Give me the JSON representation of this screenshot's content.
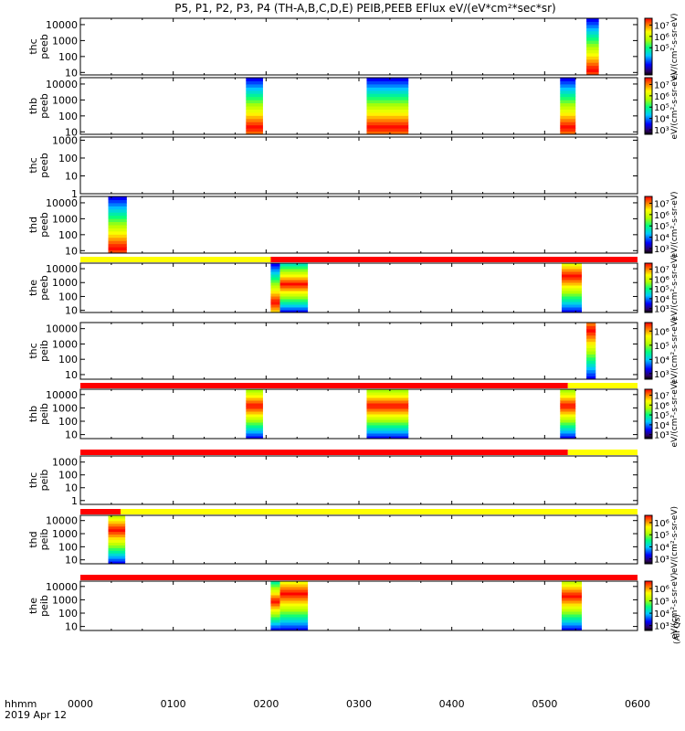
{
  "chart_data": {
    "type": "heatmap",
    "title": "P5, P1, P2, P3, P4 (TH-A,B,C,D,E) PEIB,PEEB EFlux eV/(eV*cm²*sec*sr)",
    "x_label_line1": "hhmm",
    "x_label_line2": "2019 Apr 12",
    "xlim_minutes": [
      0,
      360
    ],
    "x_ticks": [
      {
        "label": "0000",
        "minute": 0
      },
      {
        "label": "0100",
        "minute": 60
      },
      {
        "label": "0200",
        "minute": 120
      },
      {
        "label": "0300",
        "minute": 180
      },
      {
        "label": "0400",
        "minute": 240
      },
      {
        "label": "0500",
        "minute": 300
      },
      {
        "label": "0600",
        "minute": 360
      }
    ],
    "colorbar_common_label": "(All Qs)",
    "panels": [
      {
        "ylabel": [
          "thc",
          "peeb"
        ],
        "yscale": "log",
        "ylim": [
          7,
          25000
        ],
        "y_ticks": [
          "10",
          "100",
          "1000",
          "10000"
        ],
        "colorbar": {
          "min_exp": 2.6,
          "max_exp": 7.6,
          "ticks": [
            5,
            6,
            7
          ],
          "tick_labels": [
            "10⁵",
            "10⁶",
            "10⁷"
          ],
          "label": "eV/(cm²-s-sr-eV)"
        },
        "spectra": [
          {
            "start_min": 327,
            "end_min": 335,
            "low_e": 7,
            "high_e": 25000,
            "peak_e": 15,
            "fill": "full"
          }
        ],
        "status_bar": []
      },
      {
        "ylabel": [
          "thb",
          "peeb"
        ],
        "yscale": "log",
        "ylim": [
          7,
          25000
        ],
        "y_ticks": [
          "10",
          "100",
          "1000",
          "10000"
        ],
        "colorbar": {
          "min_exp": 2.6,
          "max_exp": 7.6,
          "ticks": [
            3,
            4,
            5,
            6,
            7
          ],
          "tick_labels": [
            "10³",
            "10⁴",
            "10⁵",
            "10⁶",
            "10⁷"
          ],
          "label": "eV/(cm²-s-sr-eV)"
        },
        "spectra": [
          {
            "start_min": 107,
            "end_min": 118,
            "low_e": 7,
            "high_e": 25000,
            "peak_e": 20,
            "fill": "full"
          },
          {
            "start_min": 185,
            "end_min": 212,
            "low_e": 7,
            "high_e": 25000,
            "peak_e": 20,
            "fill": "full"
          },
          {
            "start_min": 310,
            "end_min": 320,
            "low_e": 7,
            "high_e": 25000,
            "peak_e": 20,
            "fill": "full"
          }
        ],
        "status_bar": []
      },
      {
        "ylabel": [
          "thc",
          "peeb"
        ],
        "yscale": "log",
        "ylim": [
          1,
          1500
        ],
        "y_ticks": [
          "1",
          "10",
          "100",
          "1000"
        ],
        "colorbar": null,
        "spectra": [],
        "status_bar": []
      },
      {
        "ylabel": [
          "thd",
          "peeb"
        ],
        "yscale": "log",
        "ylim": [
          7,
          25000
        ],
        "y_ticks": [
          "10",
          "100",
          "1000",
          "10000"
        ],
        "colorbar": {
          "min_exp": 2.6,
          "max_exp": 7.6,
          "ticks": [
            3,
            4,
            5,
            6,
            7
          ],
          "tick_labels": [
            "10³",
            "10⁴",
            "10⁵",
            "10⁶",
            "10⁷"
          ],
          "label": "eV/(cm²-s-sr-eV)"
        },
        "spectra": [
          {
            "start_min": 18,
            "end_min": 30,
            "low_e": 7,
            "high_e": 25000,
            "peak_e": 15,
            "fill": "full"
          }
        ],
        "status_bar": []
      },
      {
        "ylabel": [
          "the",
          "peeb"
        ],
        "yscale": "log",
        "ylim": [
          7,
          25000
        ],
        "y_ticks": [
          "10",
          "100",
          "1000",
          "10000"
        ],
        "colorbar": {
          "min_exp": 2.6,
          "max_exp": 7.6,
          "ticks": [
            3,
            4,
            5,
            6,
            7
          ],
          "tick_labels": [
            "10³",
            "10⁴",
            "10⁵",
            "10⁶",
            "10⁷"
          ],
          "label": "eV/(cm²-s-sr-eV)"
        },
        "spectra": [
          {
            "start_min": 123,
            "end_min": 129,
            "low_e": 7,
            "high_e": 25000,
            "peak_e": 40,
            "fill": "full"
          },
          {
            "start_min": 129,
            "end_min": 147,
            "low_e": 7,
            "high_e": 25000,
            "peak_e": 800,
            "fill": "full"
          },
          {
            "start_min": 311,
            "end_min": 324,
            "low_e": 7,
            "high_e": 25000,
            "peak_e": 3000,
            "fill": "full"
          }
        ],
        "status_bar": [
          {
            "start_min": 0,
            "end_min": 123,
            "color": "#ffff00"
          },
          {
            "start_min": 123,
            "end_min": 360,
            "color": "#ff0000"
          }
        ]
      },
      {
        "ylabel": [
          "thc",
          "peib"
        ],
        "yscale": "log",
        "ylim": [
          5,
          25000
        ],
        "y_ticks": [
          "10",
          "100",
          "1000",
          "10000"
        ],
        "colorbar": {
          "min_exp": 2.6,
          "max_exp": 6.6,
          "ticks": [
            3,
            4,
            5,
            6
          ],
          "tick_labels": [
            "10³",
            "10⁴",
            "10⁵",
            "10⁶"
          ],
          "label": "eV/(cm²-s-sr-eV)"
        },
        "spectra": [
          {
            "start_min": 327,
            "end_min": 333,
            "low_e": 5,
            "high_e": 25000,
            "peak_e": 8000,
            "fill": "full"
          }
        ],
        "status_bar": []
      },
      {
        "ylabel": [
          "thb",
          "peib"
        ],
        "yscale": "log",
        "ylim": [
          5,
          25000
        ],
        "y_ticks": [
          "10",
          "100",
          "1000",
          "10000"
        ],
        "colorbar": {
          "min_exp": 2.6,
          "max_exp": 7.6,
          "ticks": [
            3,
            4,
            5,
            6,
            7
          ],
          "tick_labels": [
            "10³",
            "10⁴",
            "10⁵",
            "10⁶",
            "10⁷"
          ],
          "label": "eV/(cm²-s-sr-eV)"
        },
        "spectra": [
          {
            "start_min": 107,
            "end_min": 118,
            "low_e": 5,
            "high_e": 25000,
            "peak_e": 1500,
            "fill": "full"
          },
          {
            "start_min": 185,
            "end_min": 212,
            "low_e": 5,
            "high_e": 25000,
            "peak_e": 1500,
            "fill": "full"
          },
          {
            "start_min": 310,
            "end_min": 320,
            "low_e": 5,
            "high_e": 25000,
            "peak_e": 1500,
            "fill": "full"
          }
        ],
        "status_bar": [
          {
            "start_min": 0,
            "end_min": 315,
            "color": "#ff0000"
          },
          {
            "start_min": 315,
            "end_min": 360,
            "color": "#ffff00"
          }
        ]
      },
      {
        "ylabel": [
          "thc",
          "peib"
        ],
        "yscale": "log",
        "ylim": [
          0.5,
          3000
        ],
        "y_ticks": [
          "1",
          "10",
          "100",
          "1000"
        ],
        "colorbar": null,
        "spectra": [],
        "status_bar": [
          {
            "start_min": 0,
            "end_min": 315,
            "color": "#ff0000"
          },
          {
            "start_min": 315,
            "end_min": 360,
            "color": "#ffff00"
          }
        ]
      },
      {
        "ylabel": [
          "thd",
          "peib"
        ],
        "yscale": "log",
        "ylim": [
          5,
          25000
        ],
        "y_ticks": [
          "10",
          "100",
          "1000",
          "10000"
        ],
        "colorbar": {
          "min_exp": 2.6,
          "max_exp": 6.6,
          "ticks": [
            3,
            4,
            5,
            6
          ],
          "tick_labels": [
            "10³",
            "10⁴",
            "10⁵",
            "10⁶"
          ],
          "label": "eV/(cm²-s-sr-eV)"
        },
        "spectra": [
          {
            "start_min": 18,
            "end_min": 29,
            "low_e": 5,
            "high_e": 25000,
            "peak_e": 2000,
            "fill": "full"
          }
        ],
        "status_bar": [
          {
            "start_min": 0,
            "end_min": 26,
            "color": "#ff0000"
          },
          {
            "start_min": 26,
            "end_min": 360,
            "color": "#ffff00"
          }
        ]
      },
      {
        "ylabel": [
          "the",
          "peib"
        ],
        "yscale": "log",
        "ylim": [
          5,
          25000
        ],
        "y_ticks": [
          "10",
          "100",
          "1000",
          "10000"
        ],
        "colorbar": {
          "min_exp": 2.6,
          "max_exp": 6.6,
          "ticks": [
            3,
            4,
            5,
            6
          ],
          "tick_labels": [
            "10³",
            "10⁴",
            "10⁵",
            "10⁶"
          ],
          "label": "eV/(cm²-s-sr-eV)"
        },
        "spectra": [
          {
            "start_min": 123,
            "end_min": 129,
            "low_e": 5,
            "high_e": 25000,
            "peak_e": 800,
            "fill": "full"
          },
          {
            "start_min": 129,
            "end_min": 147,
            "low_e": 5,
            "high_e": 25000,
            "peak_e": 3000,
            "fill": "full"
          },
          {
            "start_min": 311,
            "end_min": 324,
            "low_e": 5,
            "high_e": 25000,
            "peak_e": 2000,
            "fill": "full"
          }
        ],
        "status_bar": [
          {
            "start_min": 0,
            "end_min": 360,
            "color": "#ff0000"
          }
        ]
      }
    ]
  }
}
